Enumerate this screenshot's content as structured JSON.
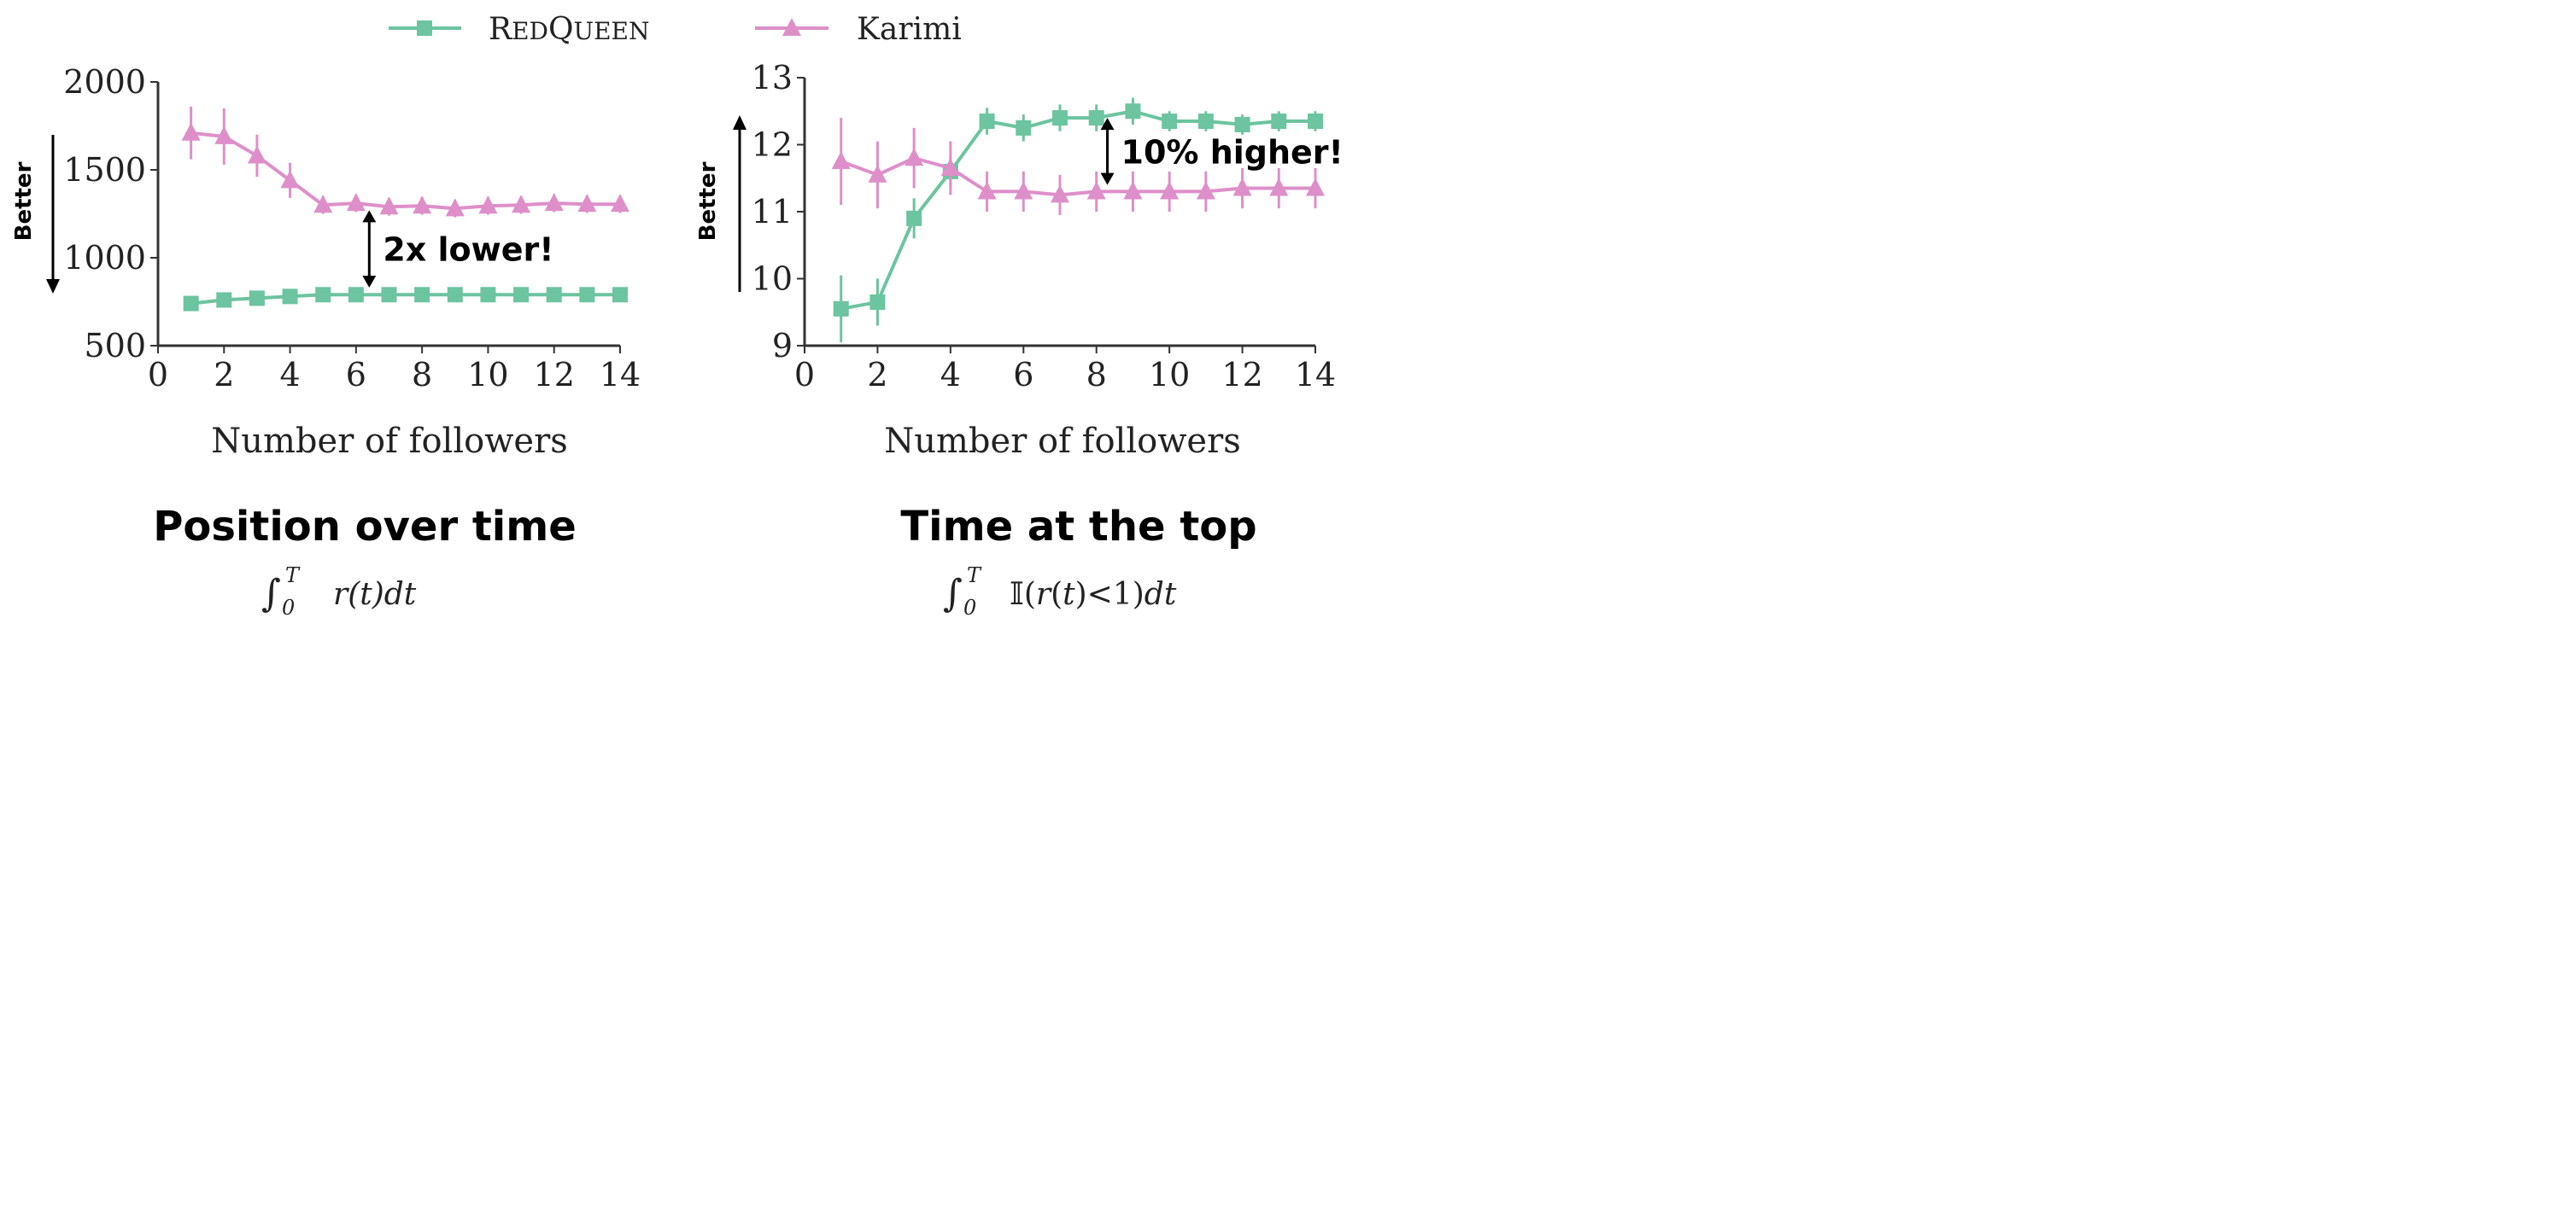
{
  "legend": {
    "series": [
      {
        "name": "RedQueen",
        "color": "#6cc4a0",
        "marker": "square"
      },
      {
        "name": "Karimi",
        "color": "#de8fc9",
        "marker": "triangle"
      }
    ],
    "placement": "top-center"
  },
  "better_label": "Better",
  "chart_data": [
    {
      "type": "line",
      "title": "Position over time",
      "formula": "∫₀ᵀ r(t)dt",
      "xlabel": "Number of followers",
      "ylabel": "",
      "xlim": [
        0,
        14
      ],
      "ylim": [
        500,
        2000
      ],
      "xticks": [
        0,
        2,
        4,
        6,
        8,
        10,
        12,
        14
      ],
      "yticks": [
        500,
        1000,
        1500,
        2000
      ],
      "better_direction": "down",
      "annotation": {
        "text": "2x lower!",
        "x": 6.4,
        "y_from": 1270,
        "y_to": 830
      },
      "series": [
        {
          "name": "RedQueen",
          "x": [
            1,
            2,
            3,
            4,
            5,
            6,
            7,
            8,
            9,
            10,
            11,
            12,
            13,
            14
          ],
          "y": [
            740,
            760,
            770,
            780,
            790,
            790,
            790,
            790,
            790,
            790,
            790,
            790,
            790,
            790
          ],
          "err": [
            5,
            5,
            5,
            5,
            5,
            5,
            5,
            5,
            5,
            5,
            5,
            5,
            5,
            5
          ]
        },
        {
          "name": "Karimi",
          "x": [
            1,
            2,
            3,
            4,
            5,
            6,
            7,
            8,
            9,
            10,
            11,
            12,
            13,
            14
          ],
          "y": [
            1710,
            1690,
            1580,
            1440,
            1300,
            1310,
            1290,
            1295,
            1280,
            1295,
            1300,
            1310,
            1305,
            1305
          ],
          "err": [
            150,
            160,
            120,
            100,
            50,
            50,
            50,
            50,
            50,
            50,
            50,
            50,
            50,
            50
          ]
        }
      ]
    },
    {
      "type": "line",
      "title": "Time at the top",
      "formula": "∫₀ᵀ 𝕀(r(t)<1)dt",
      "xlabel": "Number of followers",
      "ylabel": "",
      "xlim": [
        0,
        14
      ],
      "ylim": [
        9,
        13
      ],
      "xticks": [
        0,
        2,
        4,
        6,
        8,
        10,
        12,
        14
      ],
      "yticks": [
        9,
        10,
        11,
        12,
        13
      ],
      "better_direction": "up",
      "annotation": {
        "text": "10% higher!",
        "x": 8.3,
        "y_from": 12.4,
        "y_to": 11.4
      },
      "series": [
        {
          "name": "RedQueen",
          "x": [
            1,
            2,
            3,
            4,
            5,
            6,
            7,
            8,
            9,
            10,
            11,
            12,
            13,
            14
          ],
          "y": [
            9.55,
            9.65,
            10.9,
            11.6,
            12.35,
            12.25,
            12.4,
            12.4,
            12.5,
            12.35,
            12.35,
            12.3,
            12.35,
            12.35
          ],
          "err": [
            0.5,
            0.35,
            0.3,
            0.25,
            0.2,
            0.2,
            0.2,
            0.2,
            0.2,
            0.15,
            0.15,
            0.15,
            0.15,
            0.15
          ]
        },
        {
          "name": "Karimi",
          "x": [
            1,
            2,
            3,
            4,
            5,
            6,
            7,
            8,
            9,
            10,
            11,
            12,
            13,
            14
          ],
          "y": [
            11.75,
            11.55,
            11.8,
            11.65,
            11.3,
            11.3,
            11.25,
            11.3,
            11.3,
            11.3,
            11.3,
            11.35,
            11.35,
            11.35
          ],
          "err": [
            0.65,
            0.5,
            0.45,
            0.4,
            0.3,
            0.3,
            0.3,
            0.3,
            0.3,
            0.3,
            0.3,
            0.3,
            0.3,
            0.3
          ]
        }
      ]
    }
  ]
}
